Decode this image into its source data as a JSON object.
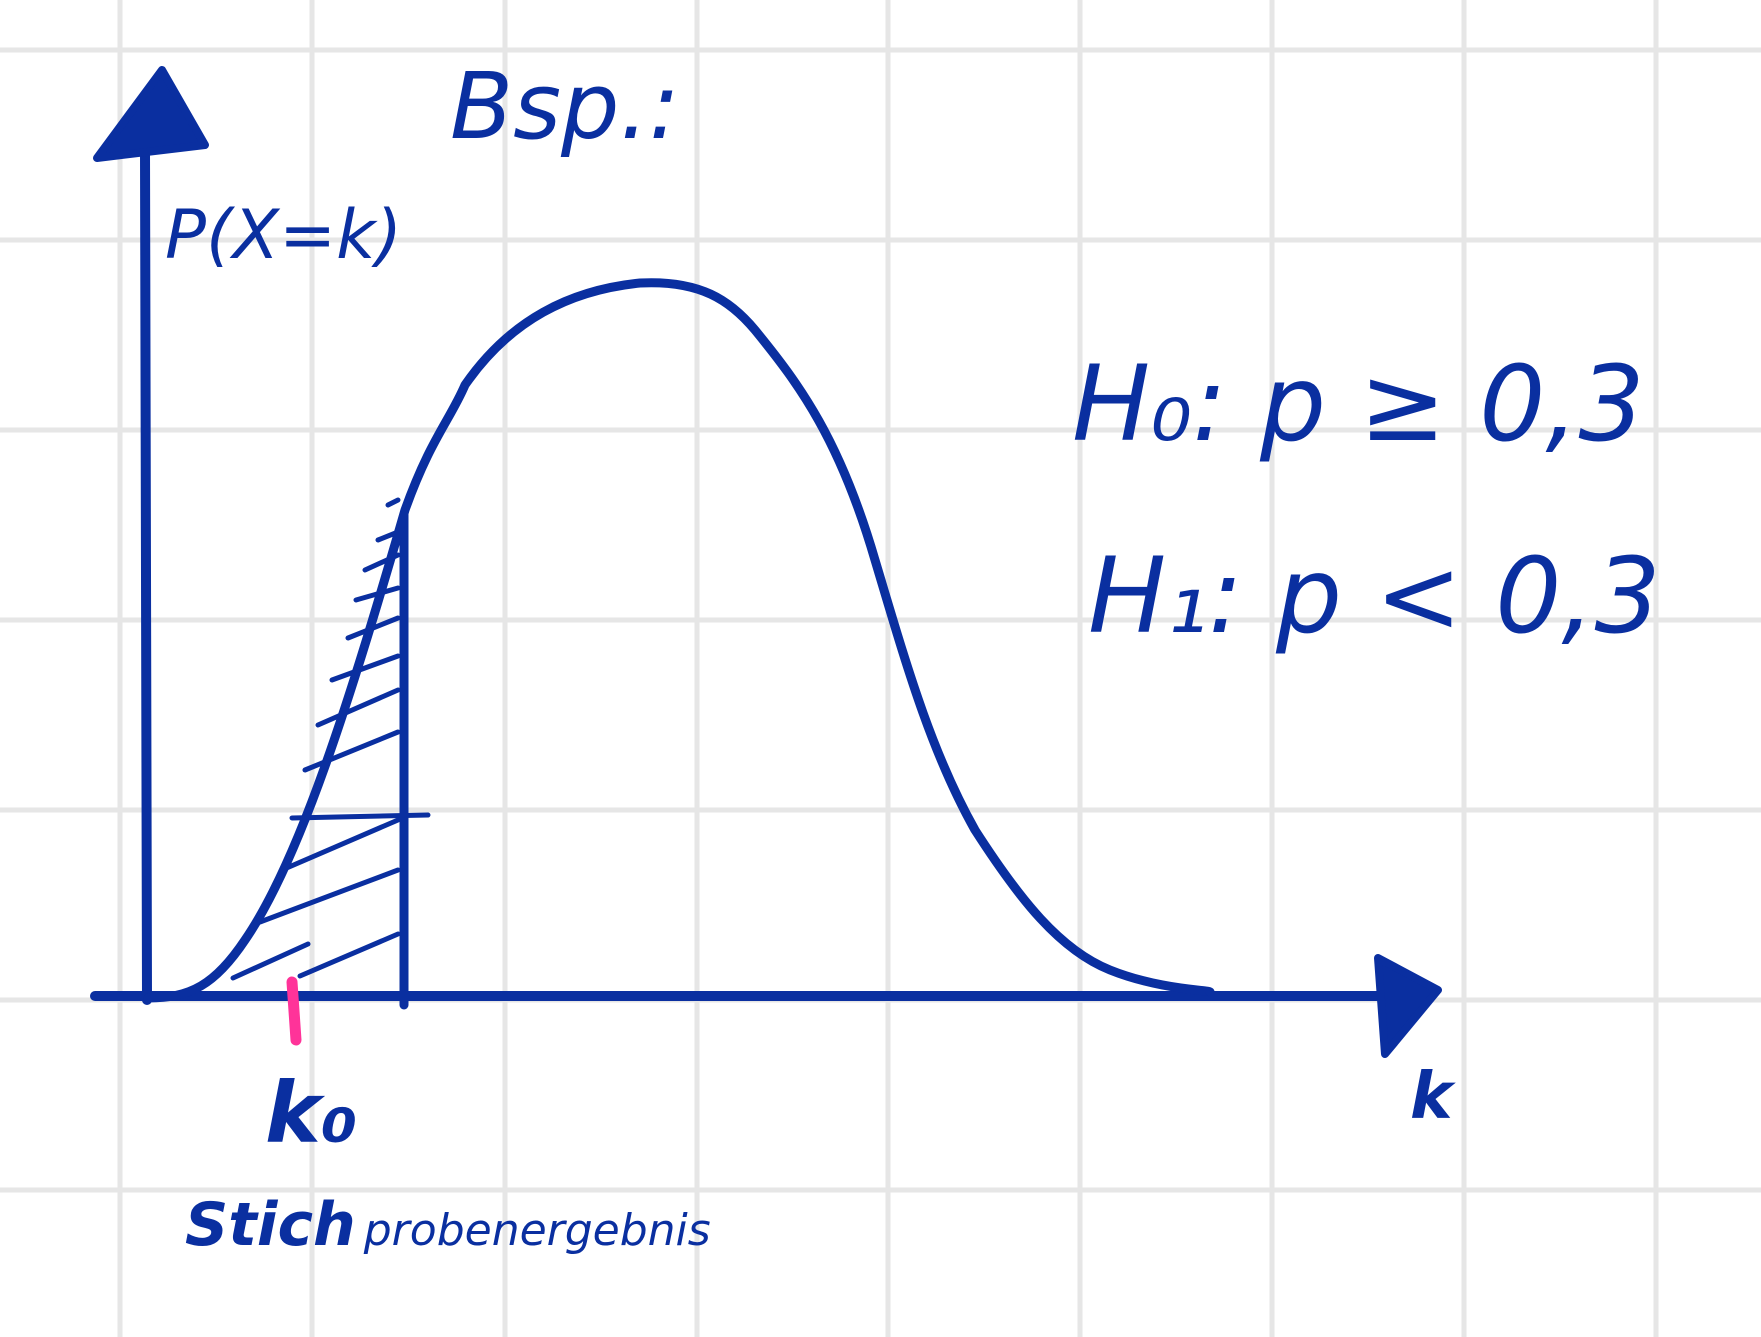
{
  "title": "Bsp.:",
  "y_axis_label": "P(X=k)",
  "x_axis_label": "k",
  "marker_label": "k₀",
  "caption_bold": "Stich",
  "caption_rest": "probenergebnis",
  "hypotheses": [
    "H₀: p ≥ 0,3",
    "H₁: p < 0,3"
  ],
  "colors": {
    "ink": "#0a2fa0",
    "marker": "#ff3399",
    "grid": "#e6e6e6",
    "paper": "#ffffff"
  },
  "icons": [
    "y-axis-arrowhead",
    "x-axis-arrowhead",
    "hatched-rejection-region",
    "bell-curve"
  ]
}
